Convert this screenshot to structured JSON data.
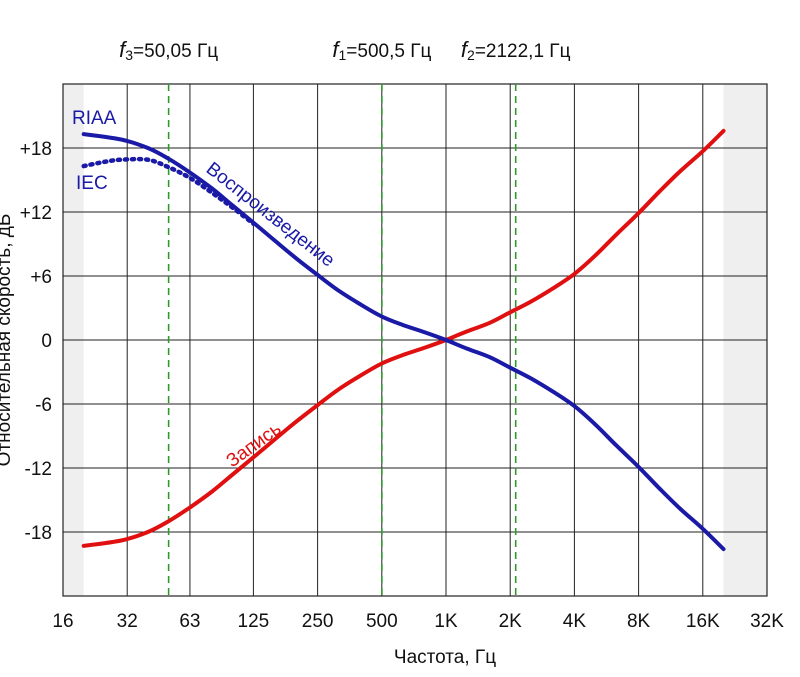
{
  "chart_data": {
    "type": "line",
    "x_scale": "log2",
    "xlabel": "Частота, Гц",
    "ylabel": "Относительная скорость, дБ",
    "xlim": [
      16,
      32000
    ],
    "ylim": [
      -24,
      24
    ],
    "x_ticks": [
      {
        "value": 16,
        "label": "16"
      },
      {
        "value": 32,
        "label": "32"
      },
      {
        "value": 63,
        "label": "63"
      },
      {
        "value": 125,
        "label": "125"
      },
      {
        "value": 250,
        "label": "250"
      },
      {
        "value": 500,
        "label": "500"
      },
      {
        "value": 1000,
        "label": "1K"
      },
      {
        "value": 2000,
        "label": "2K"
      },
      {
        "value": 4000,
        "label": "4K"
      },
      {
        "value": 8000,
        "label": "8K"
      },
      {
        "value": 16000,
        "label": "16K"
      },
      {
        "value": 32000,
        "label": "32K"
      }
    ],
    "y_ticks": [
      {
        "value": 18,
        "label": "+18"
      },
      {
        "value": 12,
        "label": "+12"
      },
      {
        "value": 6,
        "label": "+6"
      },
      {
        "value": 0,
        "label": "0"
      },
      {
        "value": -6,
        "label": "-6"
      },
      {
        "value": -12,
        "label": "-12"
      },
      {
        "value": -18,
        "label": "-18"
      }
    ],
    "grid": true,
    "shaded_regions": [
      {
        "from": 16,
        "to": 20
      },
      {
        "from": 20000,
        "to": 32000
      }
    ],
    "vlines": [
      {
        "prefix": "f",
        "sub": "3",
        "label": "=50,05 Гц",
        "x": 50.05
      },
      {
        "prefix": "f",
        "sub": "1",
        "label": "=500,5 Гц",
        "x": 500.5
      },
      {
        "prefix": "f",
        "sub": "2",
        "label": "=2122,1 Гц",
        "x": 2122.1
      }
    ],
    "series": [
      {
        "name": "Воспроизведение",
        "tag": "RIAA",
        "color": "#1a1aa6",
        "style": "solid",
        "x": [
          20,
          30,
          40,
          50,
          63,
          80,
          100,
          125,
          160,
          200,
          250,
          315,
          400,
          500,
          630,
          800,
          1000,
          1250,
          1600,
          2000,
          2500,
          3150,
          4000,
          5000,
          6300,
          8000,
          10000,
          12500,
          16000,
          20000
        ],
        "y": [
          19.3,
          18.8,
          18.0,
          17.0,
          15.7,
          14.2,
          12.6,
          11.0,
          9.2,
          7.6,
          6.1,
          4.6,
          3.3,
          2.2,
          1.4,
          0.7,
          0.0,
          -0.8,
          -1.6,
          -2.6,
          -3.6,
          -4.8,
          -6.2,
          -7.9,
          -9.9,
          -11.9,
          -13.9,
          -15.8,
          -17.7,
          -19.6
        ]
      },
      {
        "name": "IEC",
        "tag": "IEC",
        "color": "#1a1aa6",
        "style": "dotted",
        "x": [
          20,
          25,
          30,
          40,
          50,
          63,
          80,
          100,
          125
        ],
        "y": [
          16.3,
          16.7,
          16.9,
          16.9,
          16.2,
          15.2,
          13.8,
          12.4,
          10.9
        ]
      },
      {
        "name": "Запись",
        "color": "#e01010",
        "style": "solid",
        "x": [
          20,
          30,
          40,
          50,
          63,
          80,
          100,
          125,
          160,
          200,
          250,
          315,
          400,
          500,
          630,
          800,
          1000,
          1250,
          1600,
          2000,
          2500,
          3150,
          4000,
          5000,
          6300,
          8000,
          10000,
          12500,
          16000,
          20000
        ],
        "y": [
          -19.3,
          -18.8,
          -18.0,
          -17.0,
          -15.7,
          -14.2,
          -12.6,
          -11.0,
          -9.2,
          -7.6,
          -6.1,
          -4.6,
          -3.3,
          -2.2,
          -1.4,
          -0.7,
          0.0,
          0.8,
          1.6,
          2.6,
          3.6,
          4.8,
          6.2,
          7.9,
          9.9,
          11.9,
          13.9,
          15.8,
          17.7,
          19.6
        ]
      }
    ]
  }
}
